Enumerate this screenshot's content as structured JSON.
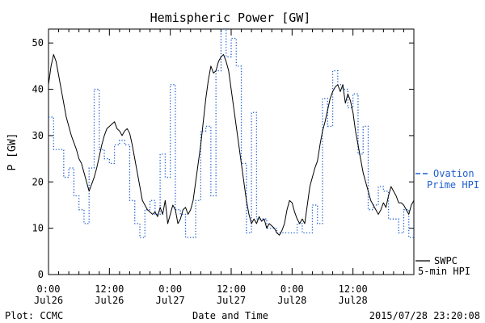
{
  "chart_data": {
    "type": "line",
    "title": "Hemispheric Power [GW]",
    "ylabel": "P [GW]",
    "xlabel": "Date and Time",
    "ylim": [
      0,
      53
    ],
    "xlim_hours": [
      0,
      72
    ],
    "yticks": [
      0,
      10,
      20,
      30,
      40,
      50
    ],
    "xticks": [
      {
        "hour": 0,
        "time": "0:00",
        "date": "Jul26"
      },
      {
        "hour": 12,
        "time": "12:00",
        "date": "Jul26"
      },
      {
        "hour": 24,
        "time": "0:00",
        "date": "Jul27"
      },
      {
        "hour": 36,
        "time": "12:00",
        "date": "Jul27"
      },
      {
        "hour": 48,
        "time": "0:00",
        "date": "Jul28"
      },
      {
        "hour": 60,
        "time": "12:00",
        "date": "Jul28"
      }
    ],
    "footer_left": "Plot: CCMC",
    "footer_right": "2015/07/28 23:20:08",
    "series": [
      {
        "name": "SWPC 5-min HPI",
        "legend_line1": "SWPC",
        "legend_line2": "5-min HPI",
        "color": "#000000",
        "style": "solid",
        "x": [
          0,
          0.5,
          1,
          1.5,
          2,
          2.5,
          3,
          3.5,
          4,
          4.5,
          5,
          5.5,
          6,
          6.5,
          7,
          7.5,
          8,
          8.5,
          9,
          9.5,
          10,
          10.5,
          11,
          11.5,
          12,
          12.5,
          13,
          13.5,
          14,
          14.5,
          15,
          15.5,
          16,
          16.5,
          17,
          17.5,
          18,
          18.5,
          19,
          19.5,
          20,
          20.5,
          21,
          21.5,
          22,
          22.5,
          23,
          23.5,
          24,
          24.5,
          25,
          25.5,
          26,
          26.5,
          27,
          27.5,
          28,
          28.5,
          29,
          29.5,
          30,
          30.5,
          31,
          31.5,
          32,
          32.5,
          33,
          33.5,
          34,
          34.5,
          35,
          35.5,
          36,
          36.5,
          37,
          37.5,
          38,
          38.5,
          39,
          39.5,
          40,
          40.5,
          41,
          41.5,
          42,
          42.5,
          43,
          43.5,
          44,
          44.5,
          45,
          45.5,
          46,
          46.5,
          47,
          47.5,
          48,
          48.5,
          49,
          49.5,
          50,
          50.5,
          51,
          51.5,
          52,
          52.5,
          53,
          53.5,
          54,
          54.5,
          55,
          55.5,
          56,
          56.5,
          57,
          57.5,
          58,
          58.5,
          59,
          59.5,
          60,
          60.5,
          61,
          61.5,
          62,
          62.5,
          63,
          63.5,
          64,
          64.5,
          65,
          65.5,
          66,
          66.5,
          67,
          67.5,
          68,
          68.5,
          69,
          69.5,
          70,
          70.5,
          71,
          71.5,
          72
        ],
        "y": [
          41,
          45,
          47.5,
          46,
          43,
          40,
          37,
          34,
          32,
          30,
          28.5,
          27,
          25,
          24,
          22,
          20,
          18,
          19.5,
          21,
          23,
          25.5,
          28,
          30,
          31.5,
          32,
          32.5,
          33,
          31.5,
          31,
          30,
          31,
          31.5,
          30.5,
          28,
          25,
          22,
          19,
          16,
          15,
          14,
          13.5,
          13,
          13.5,
          12.5,
          14.5,
          13,
          16,
          11,
          13,
          15,
          14,
          11,
          12,
          14,
          14.5,
          13,
          14,
          16,
          20,
          24,
          28,
          33,
          38,
          42,
          45,
          43.5,
          44,
          46,
          47,
          47.5,
          46,
          44,
          40,
          36,
          32,
          28,
          24,
          20,
          16,
          13,
          11,
          12,
          11,
          12.5,
          11.5,
          12,
          10,
          11,
          10.5,
          10,
          9,
          8.5,
          9.5,
          11,
          14,
          16,
          15.5,
          13.5,
          12,
          11,
          12,
          11,
          15,
          19,
          21,
          23,
          24.5,
          28,
          31,
          33,
          35.5,
          38,
          39.5,
          40.5,
          41,
          39.5,
          41,
          37,
          39,
          37.5,
          35,
          31,
          28,
          25,
          22,
          20,
          18,
          16,
          15,
          14,
          13,
          14,
          15.5,
          14.5,
          17,
          19,
          18,
          17,
          15.5,
          15.5,
          15,
          14,
          13,
          15,
          16
        ]
      },
      {
        "name": "Ovation Prime HPI",
        "legend_line1": "Ovation",
        "legend_line2": "Prime HPI",
        "color": "#1f5fd0",
        "style": "dotted-step",
        "x": [
          0,
          1,
          3,
          4,
          5,
          6,
          7,
          8,
          9,
          10,
          11,
          12,
          13,
          14,
          15,
          16,
          17,
          18,
          19,
          20,
          21,
          22,
          23,
          24,
          25,
          26,
          27,
          28,
          29,
          30,
          31,
          32,
          33,
          34,
          35,
          36,
          37,
          38,
          39,
          40,
          41,
          42,
          43,
          44,
          45,
          46,
          47,
          48,
          49,
          50,
          51,
          52,
          53,
          54,
          55,
          56,
          57,
          58,
          59,
          60,
          61,
          62,
          63,
          64,
          65,
          66,
          67,
          68,
          69,
          70,
          71,
          72
        ],
        "y": [
          34,
          27,
          21,
          23,
          17,
          14,
          11,
          23,
          40,
          27,
          25,
          24,
          28,
          29,
          28,
          16,
          11,
          8,
          14,
          16,
          13,
          26,
          21,
          41,
          14,
          13,
          8,
          8,
          16,
          31,
          32,
          17,
          44,
          53,
          47,
          51,
          45,
          24,
          9,
          35,
          12,
          12,
          10,
          10,
          9,
          9,
          9,
          9,
          11,
          9,
          9,
          15,
          11,
          38,
          32,
          44,
          41,
          40,
          36,
          39,
          26,
          32,
          14,
          15,
          19,
          18,
          12,
          12,
          9,
          14,
          8,
          11
        ]
      }
    ]
  }
}
